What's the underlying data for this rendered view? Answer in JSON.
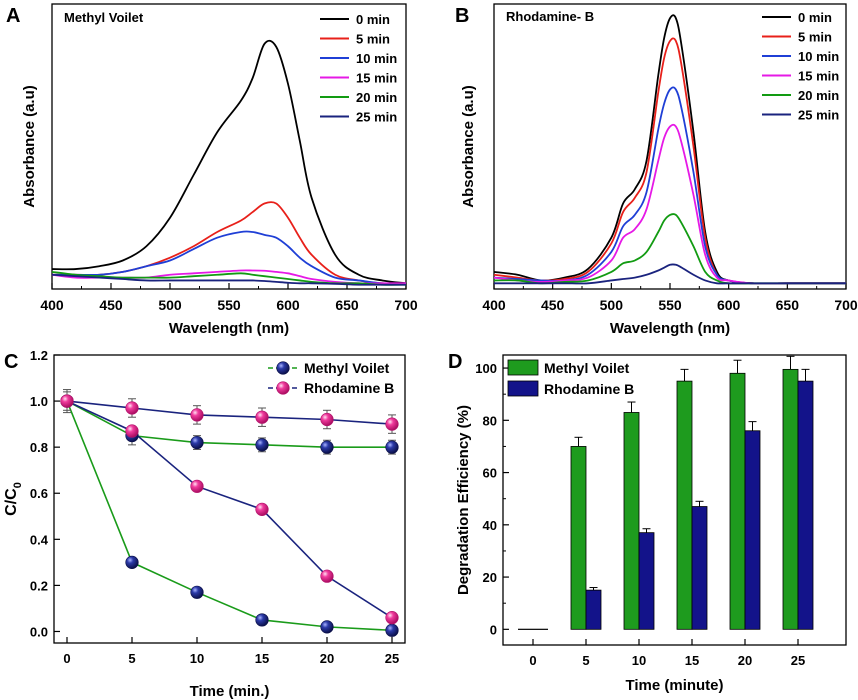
{
  "figure": {
    "panel_letters": [
      "A",
      "B",
      "C",
      "D"
    ]
  },
  "chart_data": [
    {
      "panel": "A",
      "type": "line",
      "title": "Methyl Voilet",
      "xlabel": "Wavelength (nm)",
      "ylabel": "Absorbance (a.u)",
      "xlim": [
        400,
        700
      ],
      "xticks": [
        400,
        450,
        500,
        550,
        600,
        650,
        700
      ],
      "ylim": [
        0,
        1
      ],
      "y_ticks_shown": false,
      "legend_position": "top-right",
      "series": [
        {
          "name": "0 min",
          "color": "#000000",
          "x": [
            400,
            420,
            440,
            460,
            480,
            500,
            520,
            540,
            560,
            570,
            580,
            590,
            600,
            610,
            620,
            640,
            660,
            680,
            700
          ],
          "y": [
            0.07,
            0.07,
            0.08,
            0.1,
            0.15,
            0.25,
            0.4,
            0.55,
            0.66,
            0.74,
            0.86,
            0.85,
            0.72,
            0.52,
            0.32,
            0.12,
            0.05,
            0.03,
            0.02
          ]
        },
        {
          "name": "5 min",
          "color": "#e8201a",
          "x": [
            400,
            420,
            440,
            460,
            480,
            500,
            520,
            540,
            560,
            570,
            580,
            590,
            600,
            610,
            620,
            640,
            660,
            680,
            700
          ],
          "y": [
            0.05,
            0.05,
            0.05,
            0.06,
            0.08,
            0.11,
            0.15,
            0.2,
            0.24,
            0.27,
            0.3,
            0.3,
            0.25,
            0.18,
            0.12,
            0.05,
            0.03,
            0.02,
            0.02
          ]
        },
        {
          "name": "10 min",
          "color": "#1f3fd6",
          "x": [
            400,
            420,
            440,
            460,
            480,
            500,
            520,
            540,
            560,
            570,
            580,
            590,
            600,
            610,
            620,
            640,
            660,
            680,
            700
          ],
          "y": [
            0.05,
            0.05,
            0.05,
            0.06,
            0.08,
            0.1,
            0.14,
            0.18,
            0.2,
            0.2,
            0.19,
            0.18,
            0.15,
            0.11,
            0.08,
            0.04,
            0.03,
            0.02,
            0.02
          ]
        },
        {
          "name": "15 min",
          "color": "#e619e6",
          "x": [
            400,
            420,
            440,
            460,
            480,
            500,
            520,
            540,
            560,
            570,
            580,
            590,
            600,
            610,
            620,
            640,
            660,
            680,
            700
          ],
          "y": [
            0.05,
            0.04,
            0.04,
            0.04,
            0.04,
            0.05,
            0.055,
            0.06,
            0.065,
            0.065,
            0.064,
            0.06,
            0.055,
            0.045,
            0.035,
            0.025,
            0.02,
            0.02,
            0.02
          ]
        },
        {
          "name": "20 min",
          "color": "#129b12",
          "x": [
            400,
            420,
            440,
            460,
            480,
            500,
            520,
            540,
            560,
            570,
            580,
            590,
            600,
            610,
            620,
            640,
            660,
            680,
            700
          ],
          "y": [
            0.06,
            0.05,
            0.045,
            0.04,
            0.04,
            0.04,
            0.045,
            0.05,
            0.055,
            0.05,
            0.045,
            0.04,
            0.035,
            0.03,
            0.025,
            0.02,
            0.02,
            0.015,
            0.015
          ]
        },
        {
          "name": "25 min",
          "color": "#1a237e",
          "x": [
            400,
            420,
            440,
            460,
            480,
            500,
            520,
            540,
            560,
            570,
            580,
            590,
            600,
            610,
            620,
            640,
            660,
            680,
            700
          ],
          "y": [
            0.05,
            0.045,
            0.04,
            0.035,
            0.03,
            0.03,
            0.03,
            0.03,
            0.03,
            0.03,
            0.028,
            0.025,
            0.022,
            0.02,
            0.02,
            0.018,
            0.015,
            0.015,
            0.015
          ]
        }
      ]
    },
    {
      "panel": "B",
      "type": "line",
      "title": "Rhodamine- B",
      "xlabel": "Wavelength (nm)",
      "ylabel": "Absorbance (a.u)",
      "xlim": [
        400,
        700
      ],
      "xticks": [
        400,
        450,
        500,
        550,
        600,
        650,
        700
      ],
      "ylim": [
        0,
        1
      ],
      "y_ticks_shown": false,
      "legend_position": "top-right",
      "series": [
        {
          "name": "0 min",
          "color": "#000000",
          "x": [
            400,
            420,
            440,
            460,
            480,
            500,
            510,
            520,
            530,
            540,
            545,
            550,
            555,
            560,
            570,
            580,
            590,
            600,
            620,
            650,
            700
          ],
          "y": [
            0.06,
            0.05,
            0.03,
            0.04,
            0.07,
            0.18,
            0.3,
            0.35,
            0.45,
            0.75,
            0.88,
            0.95,
            0.95,
            0.85,
            0.55,
            0.2,
            0.06,
            0.03,
            0.02,
            0.02,
            0.02
          ]
        },
        {
          "name": "5 min",
          "color": "#e8201a",
          "x": [
            400,
            420,
            440,
            460,
            480,
            500,
            510,
            520,
            530,
            540,
            545,
            550,
            555,
            560,
            570,
            580,
            590,
            600,
            620,
            650,
            700
          ],
          "y": [
            0.05,
            0.04,
            0.03,
            0.035,
            0.06,
            0.16,
            0.27,
            0.32,
            0.41,
            0.69,
            0.81,
            0.87,
            0.87,
            0.78,
            0.5,
            0.18,
            0.05,
            0.03,
            0.02,
            0.02,
            0.02
          ]
        },
        {
          "name": "10 min",
          "color": "#1f3fd6",
          "x": [
            400,
            420,
            440,
            460,
            480,
            500,
            510,
            520,
            530,
            540,
            545,
            550,
            555,
            560,
            570,
            580,
            590,
            600,
            620,
            650,
            700
          ],
          "y": [
            0.04,
            0.035,
            0.03,
            0.03,
            0.05,
            0.13,
            0.22,
            0.26,
            0.34,
            0.56,
            0.65,
            0.7,
            0.7,
            0.63,
            0.41,
            0.15,
            0.05,
            0.03,
            0.02,
            0.02,
            0.02
          ]
        },
        {
          "name": "15 min",
          "color": "#e619e6",
          "x": [
            400,
            420,
            440,
            460,
            480,
            500,
            510,
            520,
            530,
            540,
            545,
            550,
            555,
            560,
            570,
            580,
            590,
            600,
            620,
            650,
            700
          ],
          "y": [
            0.04,
            0.03,
            0.025,
            0.03,
            0.04,
            0.1,
            0.18,
            0.21,
            0.28,
            0.45,
            0.53,
            0.57,
            0.57,
            0.51,
            0.33,
            0.12,
            0.04,
            0.03,
            0.02,
            0.02,
            0.02
          ]
        },
        {
          "name": "20 min",
          "color": "#129b12",
          "x": [
            400,
            420,
            440,
            460,
            480,
            500,
            510,
            520,
            530,
            540,
            545,
            550,
            555,
            560,
            570,
            580,
            590,
            600,
            620,
            650,
            700
          ],
          "y": [
            0.03,
            0.03,
            0.02,
            0.025,
            0.03,
            0.06,
            0.09,
            0.1,
            0.13,
            0.2,
            0.24,
            0.26,
            0.26,
            0.23,
            0.15,
            0.06,
            0.03,
            0.02,
            0.02,
            0.02,
            0.02
          ]
        },
        {
          "name": "25 min",
          "color": "#1a237e",
          "x": [
            400,
            420,
            440,
            460,
            480,
            500,
            510,
            520,
            530,
            540,
            545,
            550,
            555,
            560,
            570,
            580,
            590,
            600,
            620,
            650,
            700
          ],
          "y": [
            0.02,
            0.02,
            0.02,
            0.02,
            0.02,
            0.03,
            0.035,
            0.04,
            0.05,
            0.065,
            0.075,
            0.085,
            0.085,
            0.075,
            0.05,
            0.03,
            0.02,
            0.02,
            0.02,
            0.02,
            0.02
          ]
        }
      ]
    },
    {
      "panel": "C",
      "type": "line",
      "xlabel": "Time (min.)",
      "ylabel": "C/C0",
      "ylabel_main": "C/C",
      "ylabel_sub": "0",
      "xlim": [
        -1,
        26
      ],
      "ylim": [
        -0.05,
        1.2
      ],
      "xticks": [
        0,
        5,
        10,
        15,
        20,
        25
      ],
      "yticks": [
        0.0,
        0.2,
        0.4,
        0.6,
        0.8,
        1.0,
        1.2
      ],
      "ytick_labels": [
        "0.0",
        "0.2",
        "0.4",
        "0.6",
        "0.8",
        "1.0",
        "1.2"
      ],
      "legend_position": "top-right",
      "series": [
        {
          "name": "Methyl Voilet",
          "legend": true,
          "line_color": "#1a9b1a",
          "marker": "navy",
          "x": [
            0,
            5,
            10,
            15,
            20,
            25
          ],
          "y": [
            1.0,
            0.3,
            0.17,
            0.05,
            0.02,
            0.005
          ],
          "err": [
            0,
            0,
            0,
            0,
            0,
            0
          ]
        },
        {
          "name": "Methyl Voilet (upper)",
          "legend": false,
          "line_color": "#1a9b1a",
          "marker": "navy",
          "x": [
            0,
            5,
            10,
            15,
            20,
            25
          ],
          "y": [
            1.0,
            0.85,
            0.82,
            0.81,
            0.8,
            0.8
          ],
          "err": [
            0.04,
            0.04,
            0.03,
            0.03,
            0.03,
            0.03
          ]
        },
        {
          "name": "Rhodamine B",
          "legend": true,
          "line_color": "#1a237e",
          "marker": "pink",
          "x": [
            0,
            5,
            10,
            15,
            20,
            25
          ],
          "y": [
            1.0,
            0.87,
            0.63,
            0.53,
            0.24,
            0.06
          ],
          "err": [
            0,
            0,
            0,
            0,
            0,
            0
          ]
        },
        {
          "name": "Rhodamine B (upper)",
          "legend": false,
          "line_color": "#1a237e",
          "marker": "pink",
          "x": [
            0,
            5,
            10,
            15,
            20,
            25
          ],
          "y": [
            1.0,
            0.97,
            0.94,
            0.93,
            0.92,
            0.9
          ],
          "err": [
            0.05,
            0.04,
            0.04,
            0.04,
            0.04,
            0.04
          ]
        }
      ]
    },
    {
      "panel": "D",
      "type": "bar",
      "xlabel": "Time (minute)",
      "ylabel": "Degradation Efficiency (%)",
      "categories": [
        "0",
        "5",
        "10",
        "15",
        "20",
        "25"
      ],
      "ylim": [
        -6,
        105
      ],
      "yticks": [
        0,
        20,
        40,
        60,
        80,
        100
      ],
      "legend_position": "top-left",
      "series": [
        {
          "name": "Methyl Voilet",
          "color": "#1e9b1e",
          "values": [
            0,
            70,
            83,
            95,
            98,
            99.5
          ],
          "err": [
            0,
            3.5,
            4,
            4.5,
            5,
            5
          ]
        },
        {
          "name": "Rhodamine B",
          "color": "#13138a",
          "values": [
            0,
            15,
            37,
            47,
            76,
            95
          ],
          "err": [
            0,
            1,
            1.5,
            2,
            3.5,
            4.5
          ]
        }
      ]
    }
  ]
}
